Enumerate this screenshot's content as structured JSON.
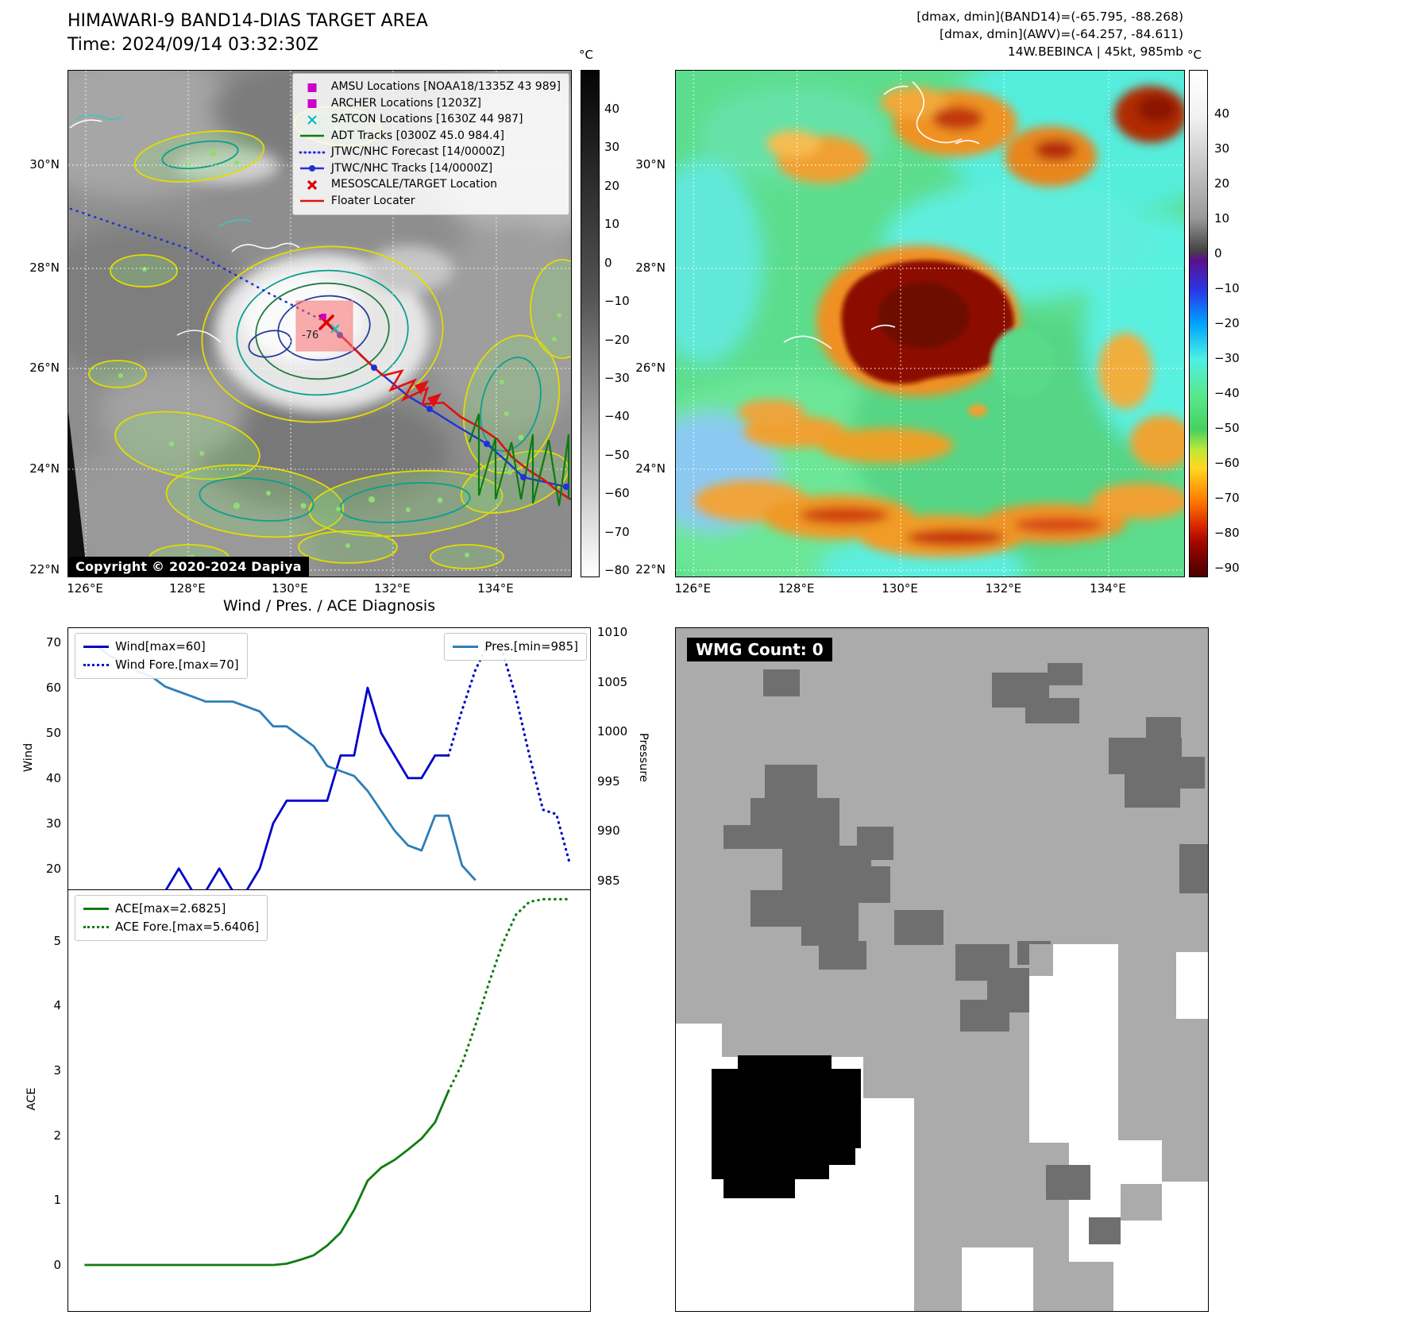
{
  "top_left": {
    "title": "HIMAWARI-9 BAND14-DIAS TARGET AREA",
    "subtitle": "Time: 2024/09/14 03:32:30Z",
    "copyright": "Copyright © 2020-2024 Dapiya",
    "target_annotation": "-76",
    "colorbar": {
      "unit": "°C",
      "ticks": [
        "40",
        "30",
        "20",
        "10",
        "0",
        "−10",
        "−20",
        "−30",
        "−40",
        "−50",
        "−60",
        "−70",
        "−80"
      ]
    },
    "lat_ticks": [
      "30°N",
      "28°N",
      "26°N",
      "24°N",
      "22°N"
    ],
    "lon_ticks": [
      "126°E",
      "128°E",
      "130°E",
      "132°E",
      "134°E"
    ],
    "legend": [
      {
        "label": "AMSU Locations [NOAA18/1335Z 43 989]",
        "marker": "square",
        "color": "#cc00cc"
      },
      {
        "label": "ARCHER Locations [1203Z]",
        "marker": "square",
        "color": "#cc00cc"
      },
      {
        "label": "SATCON Locations [1630Z 44 987]",
        "marker": "x",
        "color": "#00b8b8"
      },
      {
        "label": "ADT Tracks [0300Z 45.0 984.4]",
        "marker": "line",
        "color": "#0a7d0a"
      },
      {
        "label": "JTWC/NHC Forecast [14/0000Z]",
        "marker": "dotted-line",
        "color": "#2230d8"
      },
      {
        "label": "JTWC/NHC Tracks [14/0000Z]",
        "marker": "line-dot",
        "color": "#2230d8"
      },
      {
        "label": "MESOSCALE/TARGET Location",
        "marker": "x-bold",
        "color": "#dd0000"
      },
      {
        "label": "Floater Locater",
        "marker": "line",
        "color": "#e01010"
      }
    ]
  },
  "top_right": {
    "header_lines": [
      "[dmax, dmin](BAND14)=(-65.795, -88.268)",
      "[dmax, dmin](AWV)=(-64.257, -84.611)",
      "14W.BEBINCA | 45kt, 985mb"
    ],
    "colorbar": {
      "unit": "°C",
      "ticks": [
        "40",
        "30",
        "20",
        "10",
        "0",
        "−10",
        "−20",
        "−30",
        "−40",
        "−50",
        "−60",
        "−70",
        "−80",
        "−90"
      ]
    },
    "lat_ticks": [
      "30°N",
      "28°N",
      "26°N",
      "24°N",
      "22°N"
    ],
    "lon_ticks": [
      "126°E",
      "128°E",
      "130°E",
      "132°E",
      "134°E"
    ]
  },
  "diagnosis": {
    "title": "Wind / Pres. / ACE Diagnosis",
    "wind_axis": {
      "label": "Wind",
      "ticks": [
        20,
        30,
        40,
        50,
        60,
        70
      ]
    },
    "pressure_axis": {
      "label": "Pressure",
      "ticks": [
        985,
        990,
        995,
        1000,
        1005,
        1010
      ]
    },
    "ace_axis": {
      "label": "ACE",
      "ticks": [
        0,
        1,
        2,
        3,
        4,
        5
      ]
    }
  },
  "wmg": {
    "label": "WMG Count: 0"
  },
  "chart_data": [
    {
      "type": "line",
      "title": "Wind / Pres. / ACE Diagnosis — wind and pressure history with forecast",
      "xlabel": "",
      "x_note": "time steps, unlabeled on axis; forecast begins at step 27",
      "xlim": [
        -1.2,
        37.5
      ],
      "ylabel_left": "Wind",
      "ylim_left": [
        15.2,
        73.2
      ],
      "ylabel_right": "Pressure",
      "ylim_right": [
        984,
        1010.4
      ],
      "grid": false,
      "legend_position": "upper-left and upper-right",
      "series": [
        {
          "name": "Wind[max=60]",
          "axis": "left",
          "style": "solid",
          "color": "#0000cd",
          "x_start": 0,
          "values": [
            15,
            15,
            15,
            15,
            15,
            15,
            15,
            20,
            15,
            15,
            20,
            15,
            15,
            20,
            30,
            35,
            35,
            35,
            35,
            45,
            45,
            60,
            50,
            45,
            40,
            40,
            45,
            45
          ]
        },
        {
          "name": "Wind Fore.[max=70]",
          "axis": "left",
          "style": "dotted",
          "color": "#0000cd",
          "x_start": 27,
          "values": [
            45,
            55,
            64,
            70,
            68,
            58,
            45,
            33,
            32,
            21
          ]
        },
        {
          "name": "Pres.[min=985]",
          "axis": "right",
          "style": "solid",
          "color": "#2e7eb8",
          "x_start": 0,
          "values": [
            1008.5,
            1008.5,
            1007.5,
            1007,
            1006,
            1005.5,
            1004.5,
            1004,
            1003.5,
            1003,
            1003,
            1003,
            1002.5,
            1002,
            1000.5,
            1000.5,
            999.5,
            998.5,
            996.5,
            996,
            995.5,
            994,
            992,
            990,
            988.5,
            988,
            991.5,
            991.5,
            986.5,
            985
          ]
        }
      ]
    },
    {
      "type": "line",
      "title": "Accumulated Cyclone Energy history with forecast",
      "xlabel": "",
      "xlim": [
        -1.2,
        37.5
      ],
      "ylabel_left": "ACE",
      "ylim_left": [
        -0.71,
        5.78
      ],
      "grid": false,
      "legend_position": "upper-left",
      "series": [
        {
          "name": "ACE[max=2.6825]",
          "axis": "left",
          "style": "solid",
          "color": "#107c10",
          "x_start": 0,
          "values": [
            0,
            0,
            0,
            0,
            0,
            0,
            0,
            0,
            0,
            0,
            0,
            0,
            0,
            0,
            0,
            0.02,
            0.08,
            0.15,
            0.3,
            0.5,
            0.85,
            1.3,
            1.5,
            1.62,
            1.78,
            1.95,
            2.2,
            2.6825
          ]
        },
        {
          "name": "ACE Fore.[max=5.6406]",
          "axis": "left",
          "style": "dotted",
          "color": "#107c10",
          "x_start": 27,
          "values": [
            2.6825,
            3.1,
            3.7,
            4.35,
            4.95,
            5.4,
            5.6,
            5.6406,
            5.6406,
            5.6406
          ]
        }
      ]
    }
  ]
}
